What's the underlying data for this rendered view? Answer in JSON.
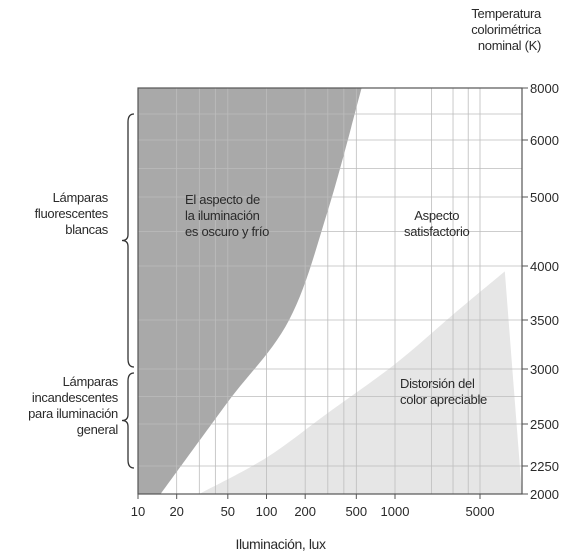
{
  "chart_data": {
    "type": "area",
    "xlabel": "Iluminación, lux",
    "ylabel_right": [
      "Temperatura",
      "colorimétrica",
      "nominal (K)"
    ],
    "x_scale": "log",
    "xlim": [
      10,
      8000
    ],
    "ylim": [
      2000,
      8000
    ],
    "x_ticks": [
      10,
      20,
      50,
      100,
      200,
      500,
      1000,
      5000
    ],
    "x_tick_labels": [
      "10",
      "20",
      "50",
      "100",
      "200",
      "500",
      "1000",
      "5000"
    ],
    "y_ticks": [
      2000,
      2250,
      2500,
      3000,
      3500,
      4000,
      5000,
      6000,
      8000
    ],
    "y_tick_labels": [
      "2000",
      "2250",
      "2500",
      "3000",
      "3500",
      "4000",
      "5000",
      "6000",
      "8000"
    ],
    "grid": true,
    "regions": [
      {
        "name": "El aspecto de la iluminación es oscuro y frío",
        "label_lines": [
          "El aspecto de",
          "la iluminación",
          "es oscuro y frío"
        ],
        "fill": "#a9a9a9",
        "boundary": [
          [
            15,
            2000
          ],
          [
            50,
            2700
          ],
          [
            150,
            3500
          ],
          [
            300,
            4800
          ],
          [
            550,
            8000
          ]
        ]
      },
      {
        "name": "Aspecto satisfactorio",
        "label_lines": [
          "Aspecto",
          "satisfactorio"
        ],
        "fill": "#ffffff"
      },
      {
        "name": "Distorsión del color apreciable",
        "label_lines": [
          "Distorsión del",
          "color apreciable"
        ],
        "fill": "#e6e6e6",
        "boundary": [
          [
            30,
            2000
          ],
          [
            100,
            2300
          ],
          [
            300,
            2600
          ],
          [
            1000,
            3050
          ],
          [
            3000,
            3550
          ],
          [
            8000,
            3950
          ]
        ]
      }
    ],
    "left_groups": [
      {
        "label_lines": [
          "Lámparas",
          "fluorescentes",
          "blancas"
        ],
        "range": [
          3000,
          8000
        ]
      },
      {
        "label_lines": [
          "Lámparas",
          "incandescentes",
          "para iluminación",
          "general"
        ],
        "range": [
          2000,
          3000
        ]
      }
    ]
  }
}
